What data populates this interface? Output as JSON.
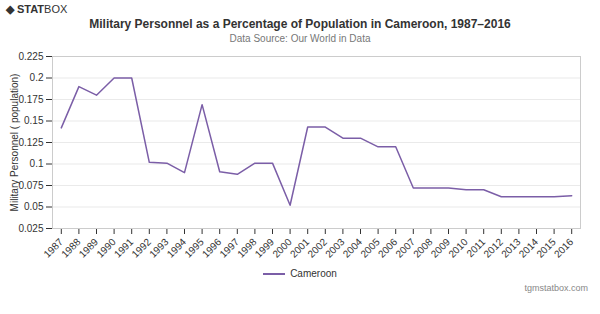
{
  "chart_data": {
    "type": "line",
    "title": "Military Personnel as a Percentage of Population in Cameroon, 1987–2016",
    "subtitle": "Data Source: Our World in Data",
    "ylabel": "Military Personnel ( population)",
    "annotations": [
      "◆",
      "STAT",
      "BOX",
      "tgmstatbox.com"
    ],
    "x": [
      1987,
      1988,
      1989,
      1990,
      1991,
      1992,
      1993,
      1994,
      1995,
      1996,
      1997,
      1998,
      1999,
      2000,
      2001,
      2002,
      2003,
      2004,
      2005,
      2006,
      2007,
      2008,
      2009,
      2010,
      2011,
      2012,
      2013,
      2014,
      2015,
      2016
    ],
    "series": [
      {
        "name": "Cameroon",
        "color": "#7B5EA7",
        "values": [
          0.142,
          0.19,
          0.18,
          0.2,
          0.2,
          0.102,
          0.101,
          0.09,
          0.169,
          0.091,
          0.088,
          0.101,
          0.101,
          0.052,
          0.143,
          0.143,
          0.13,
          0.13,
          0.12,
          0.12,
          0.072,
          0.072,
          0.072,
          0.07,
          0.07,
          0.062,
          0.062,
          0.062,
          0.062,
          0.063
        ]
      }
    ],
    "xlim": [
      1986.5,
      2016.5
    ],
    "xticks": [
      1987,
      1988,
      1989,
      1990,
      1991,
      1992,
      1993,
      1994,
      1995,
      1996,
      1997,
      1998,
      1999,
      2000,
      2001,
      2002,
      2003,
      2004,
      2005,
      2006,
      2007,
      2008,
      2009,
      2010,
      2011,
      2012,
      2013,
      2014,
      2015,
      2016
    ],
    "ylim": [
      0.025,
      0.225
    ],
    "yticks": [
      0.025,
      0.05,
      0.075,
      0.1,
      0.125,
      0.15,
      0.175,
      0.2,
      0.225
    ],
    "grid": true,
    "legend": "bottom"
  }
}
